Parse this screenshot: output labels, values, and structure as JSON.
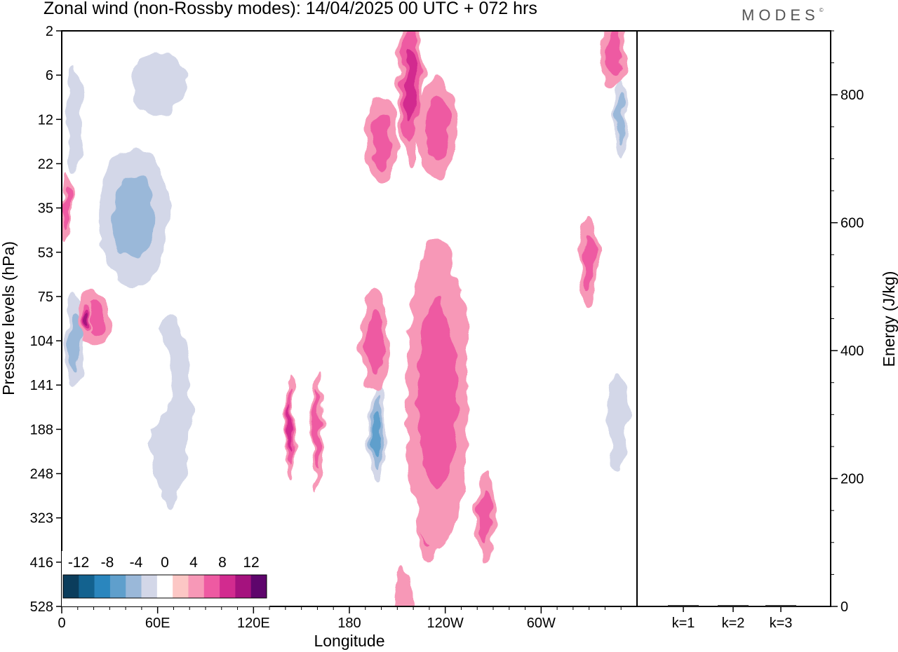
{
  "header": {
    "title": "Zonal wind (non-Rossby modes):  14/04/2025  00 UTC  + 072 hrs",
    "logo": "MODES",
    "logo_mark": "©"
  },
  "chart_data": [
    {
      "type": "heatmap",
      "title": "Zonal wind (non-Rossby modes):  14/04/2025  00 UTC  + 072 hrs",
      "xlabel": "Longitude",
      "ylabel": "Pressure levels (hPa)",
      "x_ticks": [
        "0",
        "60E",
        "120E",
        "180",
        "120W",
        "60W"
      ],
      "x_tick_degrees": [
        0,
        60,
        120,
        180,
        240,
        300
      ],
      "xlim": [
        0,
        360
      ],
      "y_ticks": [
        "2",
        "6",
        "12",
        "22",
        "35",
        "53",
        "75",
        "104",
        "141",
        "188",
        "248",
        "323",
        "416",
        "528"
      ],
      "colorbar": {
        "labels": [
          "-12",
          "-8",
          "-4",
          "0",
          "4",
          "8",
          "12"
        ],
        "levels": [
          -14,
          -12,
          -10,
          -8,
          -6,
          -4,
          -2,
          2,
          4,
          6,
          8,
          10,
          12,
          14
        ],
        "colors": [
          "#0b3d5c",
          "#13628f",
          "#2a86be",
          "#5f9fcc",
          "#9ab8d9",
          "#d3d7e8",
          "#ffffff",
          "#fcc7c5",
          "#f798b7",
          "#ee5aa2",
          "#d22b8f",
          "#a5127e",
          "#5e056c"
        ]
      },
      "features": [
        {
          "lon": 45,
          "level": 4.2,
          "value": -6,
          "w": 30,
          "h": 2.2
        },
        {
          "lon": 60,
          "level": 1.2,
          "value": -4,
          "w": 28,
          "h": 1.2
        },
        {
          "lon": 8,
          "level": 2.0,
          "value": -4,
          "w": 8,
          "h": 2.0
        },
        {
          "lon": 8,
          "level": 7.0,
          "value": -6,
          "w": 8,
          "h": 1.5
        },
        {
          "lon": 20,
          "level": 6.5,
          "value": 5,
          "w": 10,
          "h": 0.7
        },
        {
          "lon": 68,
          "level": 8.6,
          "value": -5,
          "w": 20,
          "h": 3.5
        },
        {
          "lon": 50,
          "level": 7.8,
          "value": -3,
          "w": 20,
          "h": 1.2
        },
        {
          "lon": 94,
          "level": 7.6,
          "value": -3,
          "w": 6,
          "h": 3.0
        },
        {
          "lon": 143,
          "level": 9.0,
          "value": 6,
          "w": 3,
          "h": 1.2
        },
        {
          "lon": 160,
          "level": 9.0,
          "value": 4,
          "w": 3,
          "h": 1.4
        },
        {
          "lon": 197,
          "level": 9.1,
          "value": -9,
          "w": 8,
          "h": 1.4
        },
        {
          "lon": 196,
          "level": 7.0,
          "value": 5,
          "w": 9,
          "h": 1.2
        },
        {
          "lon": 230,
          "level": 9.5,
          "value": 10,
          "w": 10,
          "h": 2.6
        },
        {
          "lon": 240,
          "level": 7.8,
          "value": 7,
          "w": 7,
          "h": 1.0
        },
        {
          "lon": 235,
          "level": 8.2,
          "value": 4,
          "w": 20,
          "h": 3.5
        },
        {
          "lon": 265,
          "level": 11.0,
          "value": 5,
          "w": 6,
          "h": 1.0
        },
        {
          "lon": 214,
          "level": 12.9,
          "value": 3,
          "w": 5,
          "h": 0.8
        },
        {
          "lon": 218,
          "level": 1.2,
          "value": 6,
          "w": 8,
          "h": 1.8
        },
        {
          "lon": 200,
          "level": 2.5,
          "value": 4,
          "w": 10,
          "h": 1.0
        },
        {
          "lon": 235,
          "level": 2.2,
          "value": 4,
          "w": 12,
          "h": 1.2
        },
        {
          "lon": 350,
          "level": 2.0,
          "value": -7,
          "w": 5,
          "h": 1.2
        },
        {
          "lon": 345,
          "level": 0.5,
          "value": 4,
          "w": 8,
          "h": 0.8
        },
        {
          "lon": 348,
          "level": 8.8,
          "value": -5,
          "w": 10,
          "h": 1.8
        },
        {
          "lon": 330,
          "level": 5.2,
          "value": 4,
          "w": 6,
          "h": 1.0
        },
        {
          "lon": 3,
          "level": 4.0,
          "value": 5,
          "w": 3,
          "h": 0.8
        },
        {
          "lon": 15,
          "level": 6.5,
          "value": 8,
          "w": 4,
          "h": 0.4
        }
      ]
    },
    {
      "type": "bar",
      "categories": [
        "k=1",
        "k=2",
        "k=3"
      ],
      "values": [
        2,
        1,
        1
      ],
      "ylabel": "Energy (J/kg)",
      "y_ticks": [
        "0",
        "200",
        "400",
        "600",
        "800"
      ],
      "ylim": [
        0,
        900
      ]
    }
  ]
}
